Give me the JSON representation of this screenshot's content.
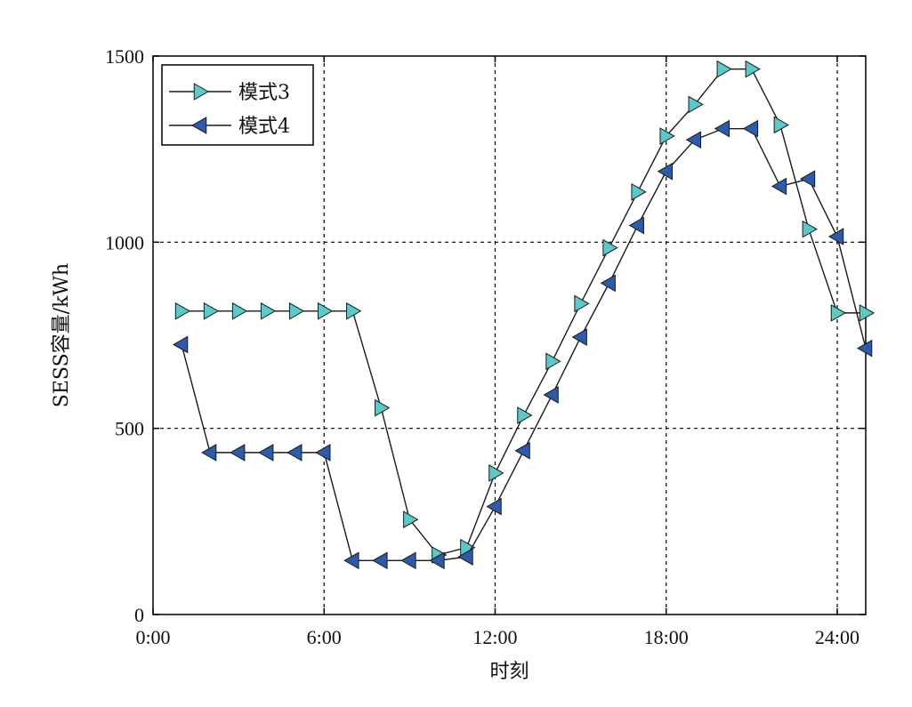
{
  "chart_data": {
    "type": "line",
    "title": "",
    "xlabel": "时刻",
    "ylabel": "SESS容量/kWh",
    "xlim": [
      0,
      25
    ],
    "ylim": [
      0,
      1500
    ],
    "x_ticks": [
      0,
      6,
      12,
      18,
      24
    ],
    "x_tick_labels": [
      "0:00",
      "6:00",
      "12:00",
      "18:00",
      "24:00"
    ],
    "y_ticks": [
      0,
      500,
      1000,
      1500
    ],
    "y_tick_labels": [
      "0",
      "500",
      "1000",
      "1500"
    ],
    "grid": true,
    "legend_position": "top-left",
    "series": [
      {
        "name": "模式3",
        "marker": "triangle-right",
        "color": "#5ec8c8",
        "x": [
          1,
          2,
          3,
          4,
          5,
          6,
          7,
          8,
          9,
          10,
          11,
          12,
          13,
          14,
          15,
          16,
          17,
          18,
          19,
          20,
          21,
          22,
          23,
          24,
          25
        ],
        "y": [
          815,
          815,
          815,
          815,
          815,
          815,
          815,
          555,
          255,
          160,
          180,
          380,
          535,
          680,
          835,
          985,
          1135,
          1285,
          1370,
          1465,
          1465,
          1315,
          1035,
          810,
          810
        ]
      },
      {
        "name": "模式4",
        "marker": "triangle-left",
        "color": "#2e5aa8",
        "x": [
          1,
          2,
          3,
          4,
          5,
          6,
          7,
          8,
          9,
          10,
          11,
          12,
          13,
          14,
          15,
          16,
          17,
          18,
          19,
          20,
          21,
          22,
          23,
          24,
          25
        ],
        "y": [
          725,
          435,
          435,
          435,
          435,
          435,
          145,
          145,
          145,
          145,
          155,
          290,
          440,
          590,
          745,
          890,
          1045,
          1190,
          1275,
          1305,
          1305,
          1150,
          1170,
          1015,
          715
        ]
      }
    ]
  }
}
